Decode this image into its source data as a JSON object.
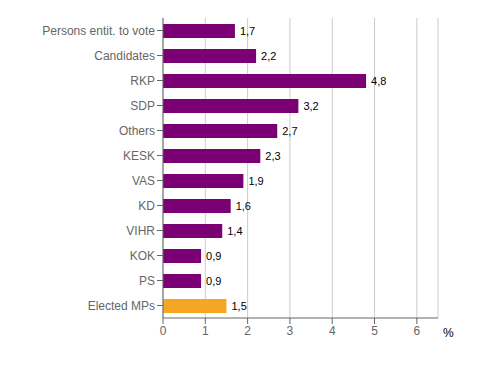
{
  "chart_data": {
    "type": "bar",
    "orientation": "horizontal",
    "categories": [
      "Persons entit. to vote",
      "Candidates",
      "RKP",
      "SDP",
      "Others",
      "KESK",
      "VAS",
      "KD",
      "VIHR",
      "KOK",
      "PS",
      "Elected MPs"
    ],
    "values": [
      1.7,
      2.2,
      4.8,
      3.2,
      2.7,
      2.3,
      1.9,
      1.6,
      1.4,
      0.9,
      0.9,
      1.5
    ],
    "value_labels": [
      "1,7",
      "2,2",
      "4,8",
      "3,2",
      "2,7",
      "2,3",
      "1,9",
      "1,6",
      "1,4",
      "0,9",
      "0,9",
      "1,5"
    ],
    "colors": [
      "#7B0074",
      "#7B0074",
      "#7B0074",
      "#7B0074",
      "#7B0074",
      "#7B0074",
      "#7B0074",
      "#7B0074",
      "#7B0074",
      "#7B0074",
      "#7B0074",
      "#F5A623"
    ],
    "xlim": [
      0,
      6.5
    ],
    "xticks": [
      0,
      1,
      2,
      3,
      4,
      5,
      6
    ],
    "xlabel": "%",
    "grid": true,
    "data_labels": true
  }
}
